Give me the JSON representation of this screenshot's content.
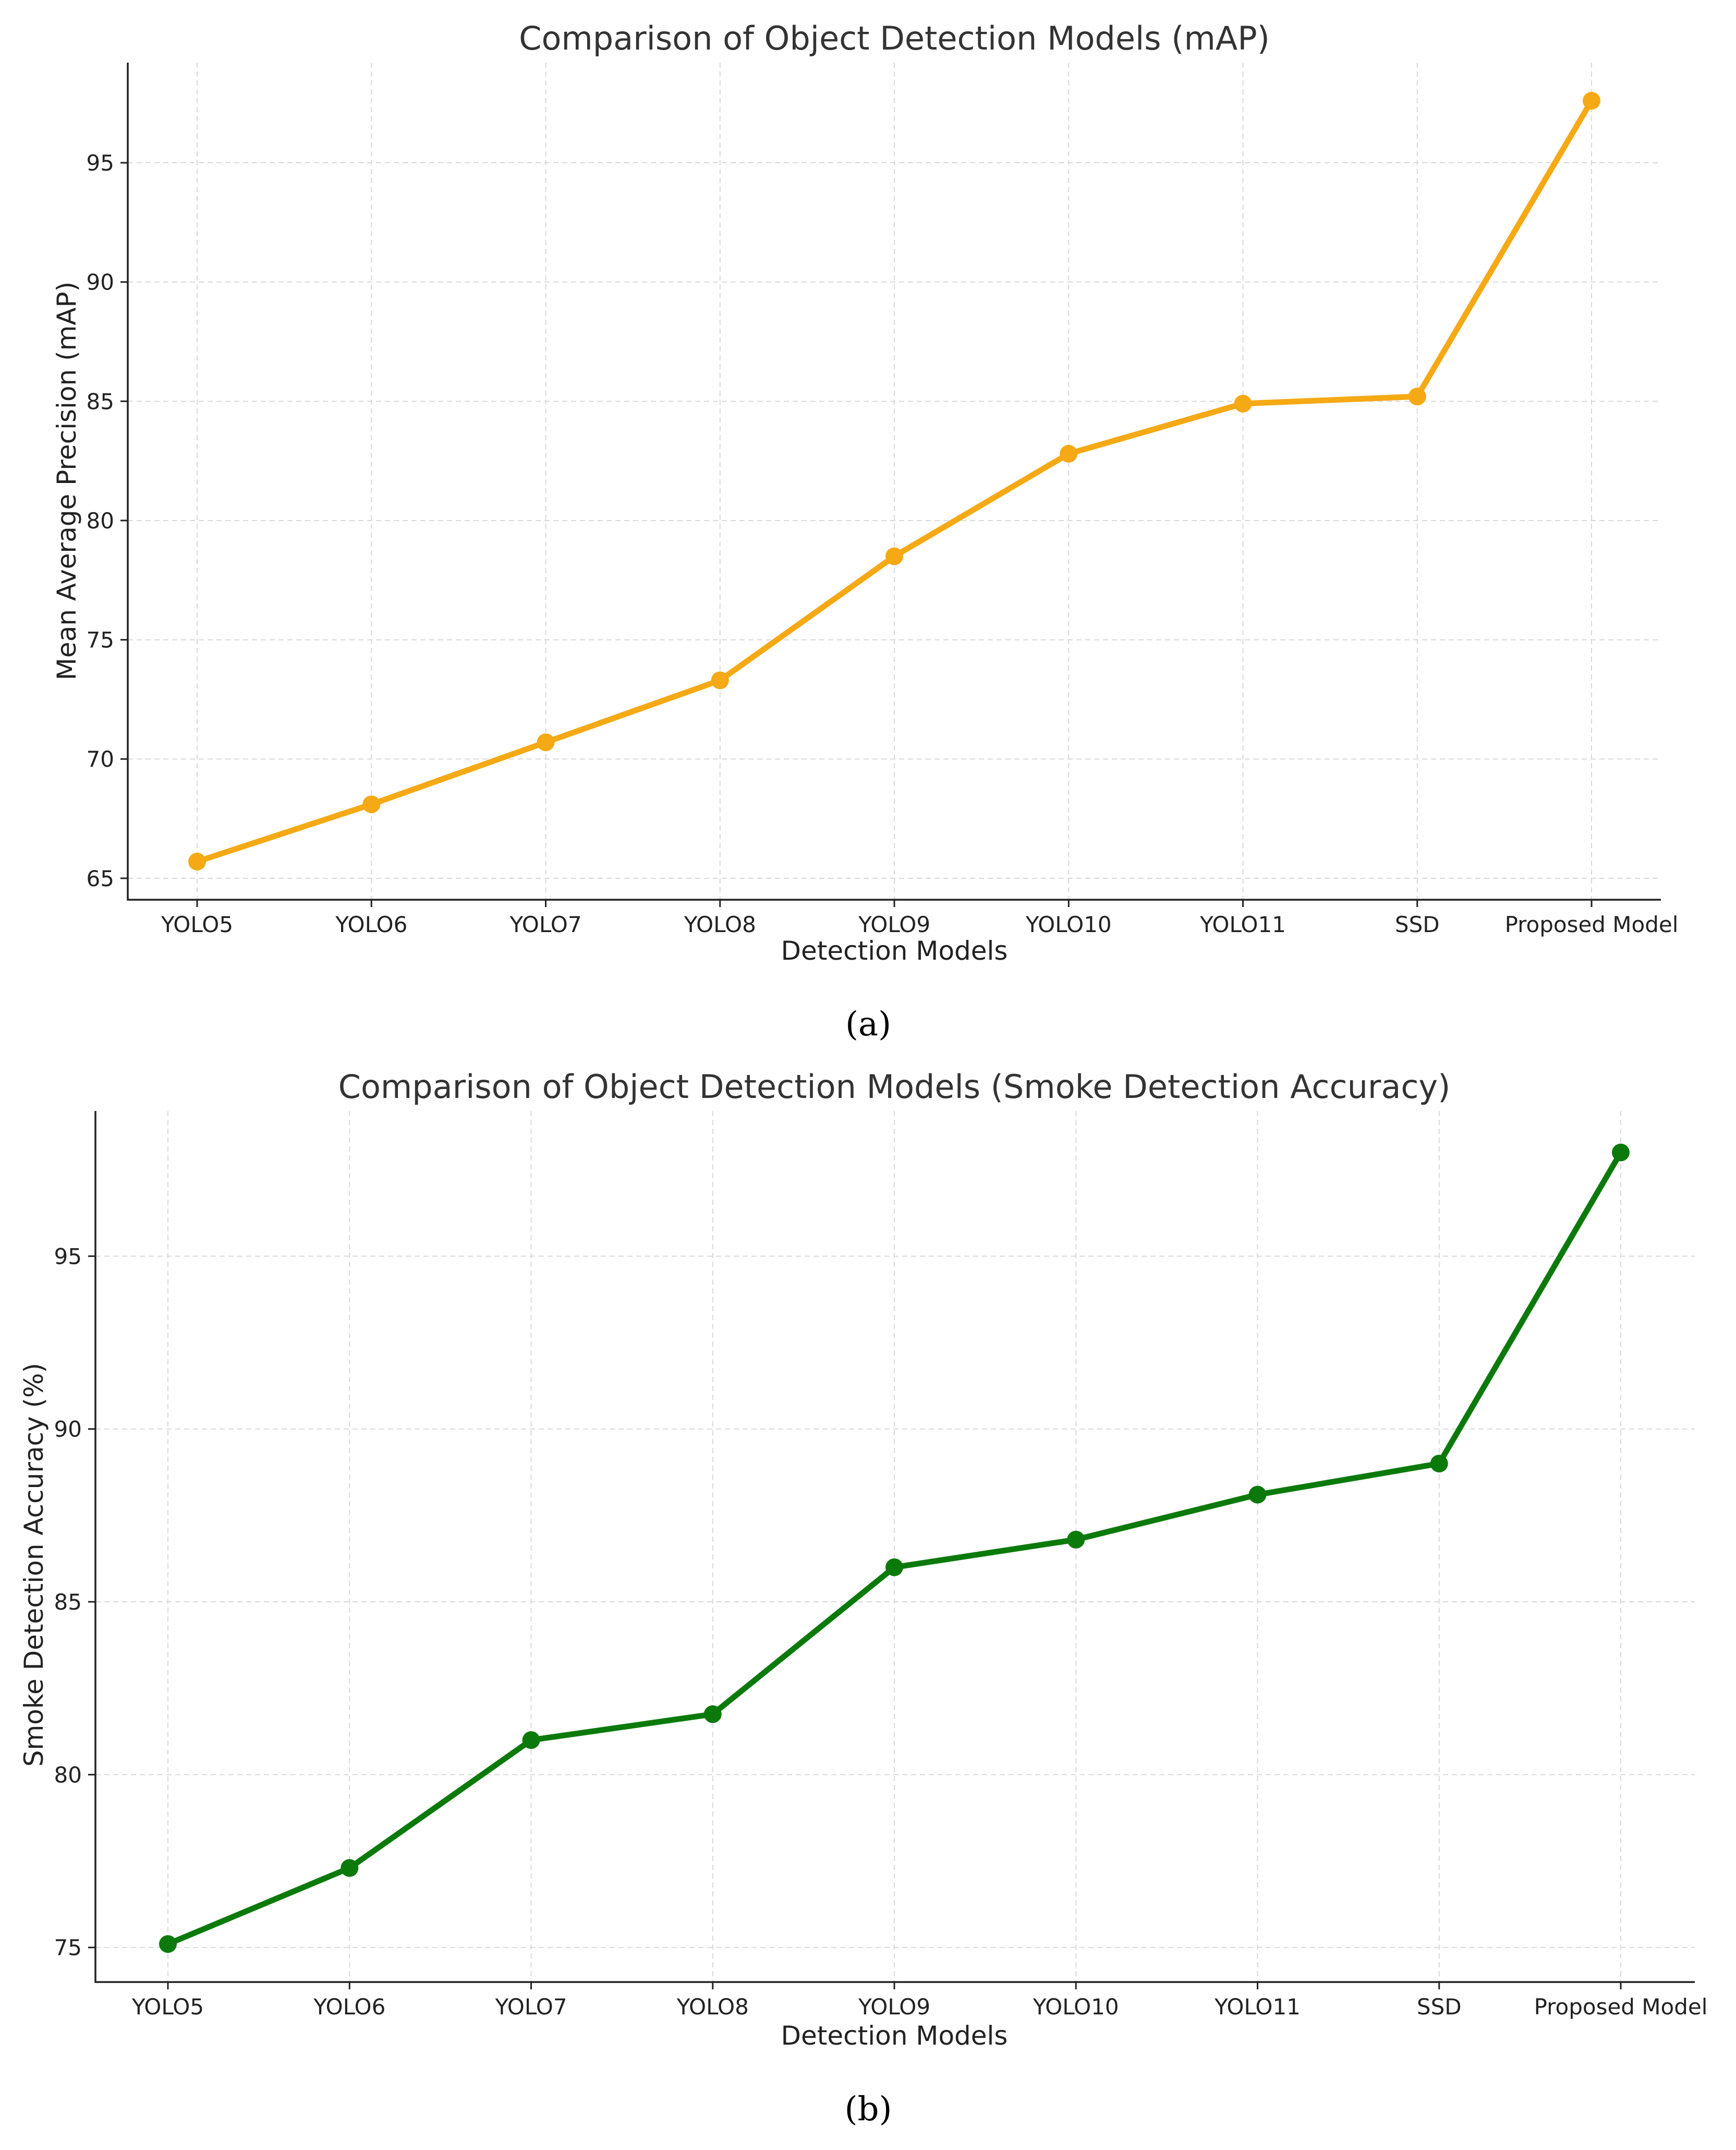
{
  "chart_data": [
    {
      "type": "line",
      "title": "Comparison of Object Detection Models (mAP)",
      "xlabel": "Detection Models",
      "ylabel": "Mean Average Precision (mAP)",
      "categories": [
        "YOLO5",
        "YOLO6",
        "YOLO7",
        "YOLO8",
        "YOLO9",
        "YOLO10",
        "YOLO11",
        "SSD",
        "Proposed Model"
      ],
      "values": [
        65.7,
        68.1,
        70.7,
        73.3,
        78.5,
        82.8,
        84.9,
        85.2,
        97.6
      ],
      "yticks": [
        65,
        70,
        75,
        80,
        85,
        90,
        95
      ],
      "ylim": [
        64.1,
        99.2
      ],
      "grid": true,
      "color": "#F5A914",
      "caption": "(a)"
    },
    {
      "type": "line",
      "title": "Comparison of Object Detection Models (Smoke Detection Accuracy)",
      "xlabel": "Detection Models",
      "ylabel": "Smoke Detection Accuracy (%)",
      "categories": [
        "YOLO5",
        "YOLO6",
        "YOLO7",
        "YOLO8",
        "YOLO9",
        "YOLO10",
        "YOLO11",
        "SSD",
        "Proposed Model"
      ],
      "values": [
        75.1,
        77.3,
        81.0,
        81.75,
        86.0,
        86.8,
        88.1,
        89.0,
        98.0
      ],
      "yticks": [
        75,
        80,
        85,
        90,
        95
      ],
      "ylim": [
        74.0,
        99.2
      ],
      "grid": true,
      "color": "#0B7A0B",
      "caption": "(b)"
    }
  ]
}
